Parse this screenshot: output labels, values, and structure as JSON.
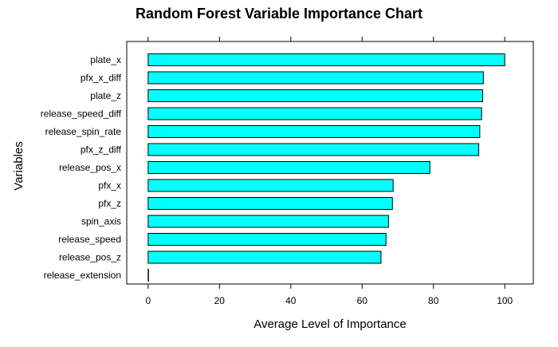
{
  "chart_data": {
    "type": "bar",
    "orientation": "horizontal",
    "title": "Random Forest Variable Importance Chart",
    "xlabel": "Average Level of Importance",
    "ylabel": "Variables",
    "categories": [
      "plate_x",
      "pfx_x_diff",
      "plate_z",
      "release_speed_diff",
      "release_spin_rate",
      "pfx_z_diff",
      "release_pos_x",
      "pfx_x",
      "pfx_z",
      "spin_axis",
      "release_speed",
      "release_pos_z",
      "release_extension"
    ],
    "values": [
      100,
      94,
      93.8,
      93.5,
      93,
      92.7,
      79,
      68.7,
      68.5,
      67.4,
      66.7,
      65.3,
      0
    ],
    "xlim": [
      -6,
      108
    ],
    "xticks": [
      0,
      20,
      40,
      60,
      80,
      100
    ],
    "bar_color": "#00FFFF",
    "bar_edge_color": "#000000",
    "grid": false
  }
}
